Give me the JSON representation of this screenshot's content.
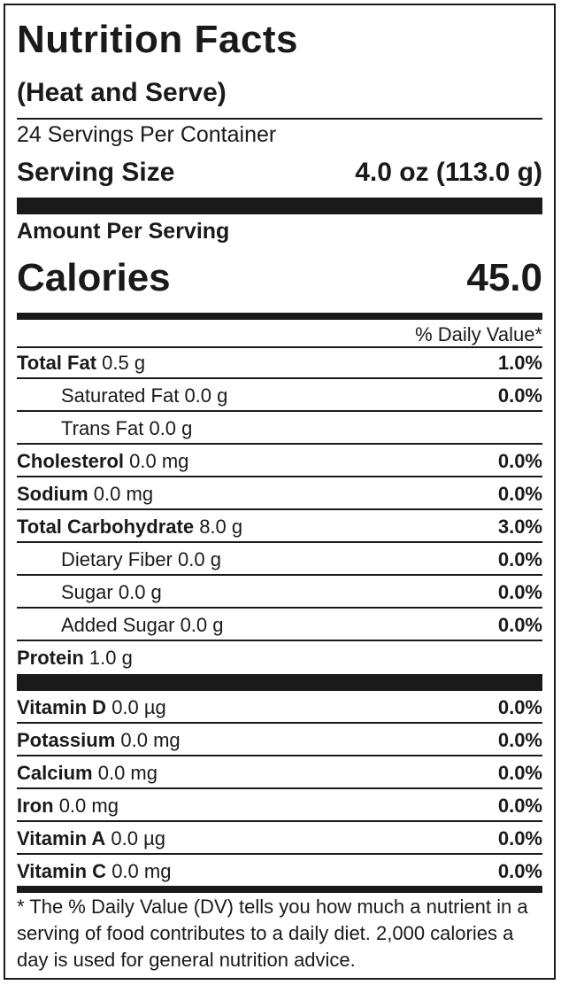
{
  "title": "Nutrition Facts",
  "subtitle": "(Heat and Serve)",
  "servings_per_container": "24 Servings Per Container",
  "serving_size_label": "Serving Size",
  "serving_size_value": "4.0 oz (113.0 g)",
  "amount_per_serving": "Amount Per Serving",
  "calories_label": "Calories",
  "calories_value": "45.0",
  "daily_value_header": "% Daily Value*",
  "nutrients": [
    {
      "name": "Total Fat",
      "amount": "0.5 g",
      "dv": "1.0%",
      "bold": true,
      "indent": false
    },
    {
      "name": "Saturated Fat",
      "amount": "0.0 g",
      "dv": "0.0%",
      "bold": false,
      "indent": true
    },
    {
      "name": "Trans Fat",
      "amount": "0.0 g",
      "dv": "",
      "bold": false,
      "indent": true
    },
    {
      "name": "Cholesterol",
      "amount": "0.0 mg",
      "dv": "0.0%",
      "bold": true,
      "indent": false
    },
    {
      "name": "Sodium",
      "amount": "0.0 mg",
      "dv": "0.0%",
      "bold": true,
      "indent": false
    },
    {
      "name": "Total Carbohydrate",
      "amount": "8.0 g",
      "dv": "3.0%",
      "bold": true,
      "indent": false
    },
    {
      "name": "Dietary Fiber",
      "amount": "0.0 g",
      "dv": "0.0%",
      "bold": false,
      "indent": true
    },
    {
      "name": "Sugar",
      "amount": "0.0 g",
      "dv": "0.0%",
      "bold": false,
      "indent": true
    },
    {
      "name": "Added Sugar",
      "amount": "0.0 g",
      "dv": "0.0%",
      "bold": false,
      "indent": true
    },
    {
      "name": "Protein",
      "amount": "1.0 g",
      "dv": "",
      "bold": true,
      "indent": false
    }
  ],
  "vitamins": [
    {
      "name": "Vitamin D",
      "amount": "0.0 µg",
      "dv": "0.0%"
    },
    {
      "name": "Potassium",
      "amount": "0.0 mg",
      "dv": "0.0%"
    },
    {
      "name": "Calcium",
      "amount": "0.0 mg",
      "dv": "0.0%"
    },
    {
      "name": "Iron",
      "amount": "0.0 mg",
      "dv": "0.0%"
    },
    {
      "name": "Vitamin A",
      "amount": "0.0 µg",
      "dv": "0.0%"
    },
    {
      "name": "Vitamin C",
      "amount": "0.0 mg",
      "dv": "0.0%"
    }
  ],
  "footnote": "* The % Daily Value (DV) tells you how much a nutrient in a serving of food contributes to a daily diet. 2,000 calories a day is used for general nutrition advice."
}
